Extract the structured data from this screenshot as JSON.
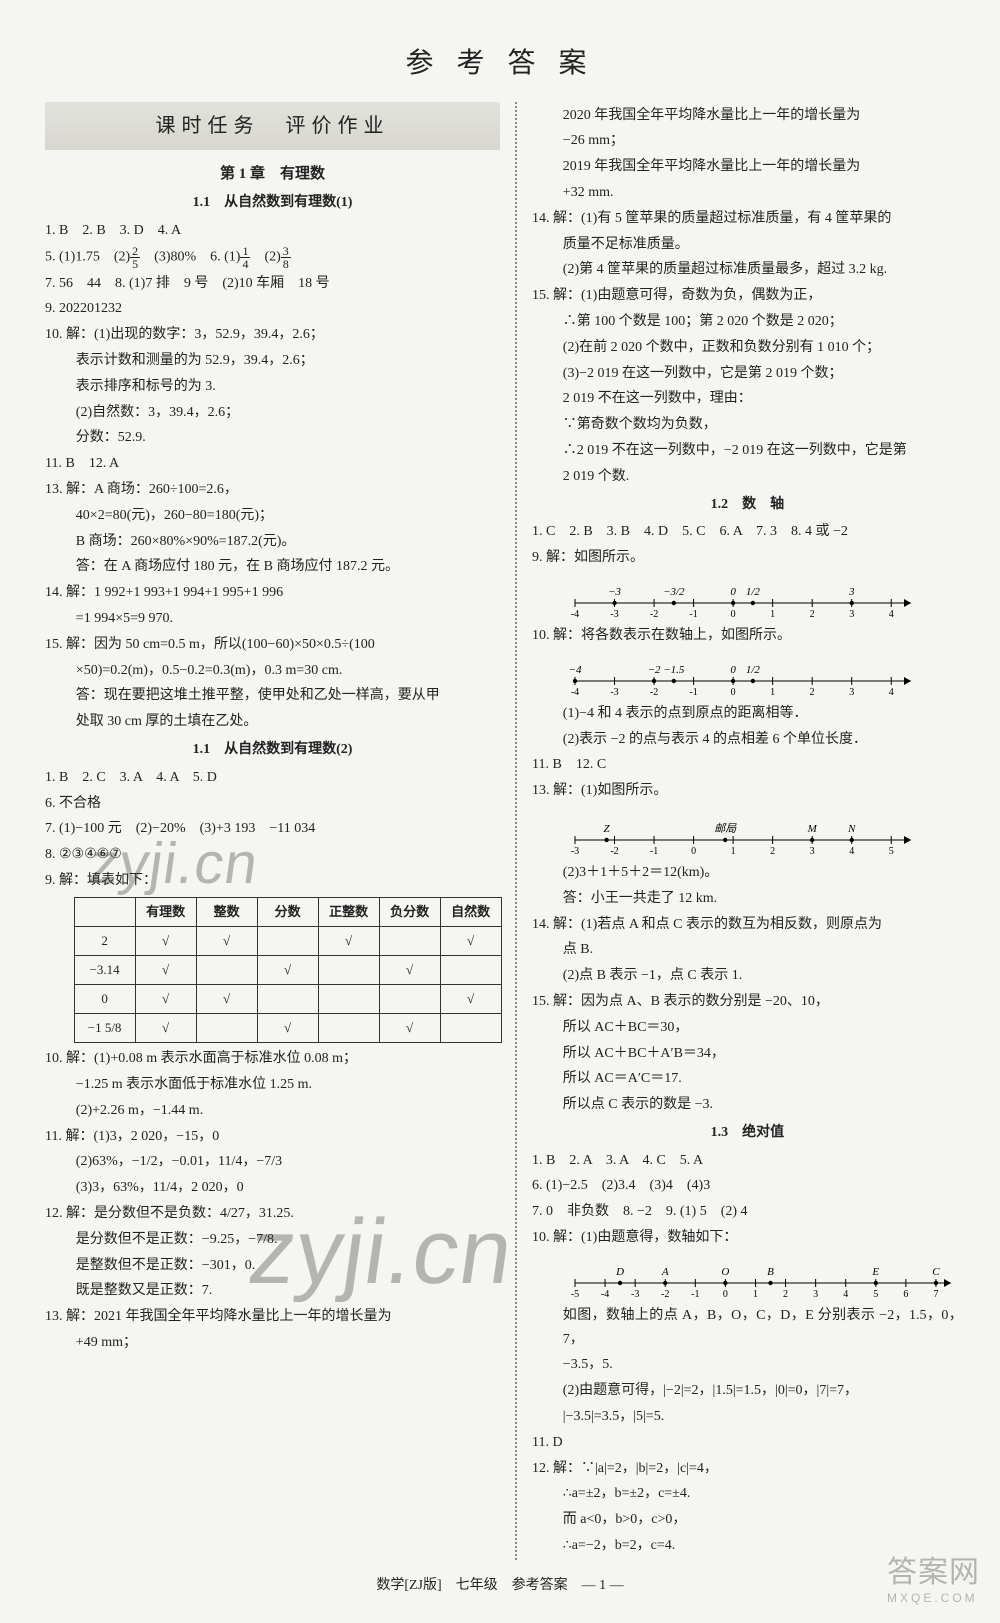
{
  "main_title": "参 考 答 案",
  "section_band": "课时任务　评价作业",
  "left": {
    "chapter": "第 1 章　有理数",
    "s1": {
      "title": "1.1　从自然数到有理数(1)",
      "l1": "1. B　2. B　3. D　4. A",
      "l2a": "5. (1)1.75　(2)",
      "l2b": "　(3)80%　6. (1)",
      "l2c": "　(2)",
      "l3": "7. 56　44　8. (1)7 排　9 号　(2)10 车厢　18 号",
      "l4": "9. 202201232",
      "l5": "10. 解：(1)出现的数字：3，52.9，39.4，2.6；",
      "l6": "表示计数和测量的为 52.9，39.4，2.6；",
      "l7": "表示排序和标号的为 3.",
      "l8": "(2)自然数：3，39.4，2.6；",
      "l9": "分数：52.9.",
      "l10": "11. B　12. A",
      "l11": "13. 解：A 商场：260÷100=2.6，",
      "l12": "40×2=80(元)，260−80=180(元)；",
      "l13": "B 商场：260×80%×90%=187.2(元)。",
      "l14": "答：在 A 商场应付 180 元，在 B 商场应付 187.2 元。",
      "l15": "14. 解：1 992+1 993+1 994+1 995+1 996",
      "l16": "=1 994×5=9 970.",
      "l17": "15. 解：因为 50 cm=0.5 m，所以(100−60)×50×0.5÷(100",
      "l18": "×50)=0.2(m)，0.5−0.2=0.3(m)，0.3 m=30 cm.",
      "l19": "答：现在要把这堆土推平整，使甲处和乙处一样高，要从甲",
      "l20": "处取 30 cm 厚的土填在乙处。"
    },
    "s2": {
      "title": "1.1　从自然数到有理数(2)",
      "l1": "1. B　2. C　3. A　4. A　5. D",
      "l2": "6. 不合格",
      "l3": "7. (1)−100 元　(2)−20%　(3)+3 193　−11 034",
      "l4": "8. ②③④⑥⑦",
      "l5": "9. 解：填表如下：",
      "table": {
        "cols": [
          "",
          "有理数",
          "整数",
          "分数",
          "正整数",
          "负分数",
          "自然数"
        ],
        "rows": [
          [
            "2",
            "√",
            "√",
            "",
            "√",
            "",
            "√"
          ],
          [
            "−3.14",
            "√",
            "",
            "√",
            "",
            "√",
            ""
          ],
          [
            "0",
            "√",
            "√",
            "",
            "",
            "",
            "√"
          ],
          [
            "−1 5/8",
            "√",
            "",
            "√",
            "",
            "√",
            ""
          ]
        ]
      },
      "l6": "10. 解：(1)+0.08 m 表示水面高于标准水位 0.08 m；",
      "l7": "−1.25 m 表示水面低于标准水位 1.25 m.",
      "l8": "(2)+2.26 m，−1.44 m.",
      "l9": "11. 解：(1)3，2 020，−15，0",
      "l10": "(2)63%，−1/2，−0.01，11/4，−7/3",
      "l11": "(3)3，63%，11/4，2 020，0",
      "l12": "12. 解：是分数但不是负数：4/27，31.25.",
      "l13": "是分数但不是正数：−9.25，−7/8.",
      "l14": "是整数但不是正数：−301，0.",
      "l15": "既是整数又是正数：7.",
      "l16": "13. 解：2021 年我国全年平均降水量比上一年的增长量为",
      "l17": "+49 mm；"
    }
  },
  "right": {
    "pre": {
      "l1": "2020 年我国全年平均降水量比上一年的增长量为",
      "l2": "−26 mm；",
      "l3": "2019 年我国全年平均降水量比上一年的增长量为",
      "l4": "+32 mm.",
      "l5": "14. 解：(1)有 5 筐苹果的质量超过标准质量，有 4 筐苹果的",
      "l6": "质量不足标准质量。",
      "l7": "(2)第 4 筐苹果的质量超过标准质量最多，超过 3.2 kg.",
      "l8": "15. 解：(1)由题意可得，奇数为负，偶数为正，",
      "l9": "∴第 100 个数是 100；第 2 020 个数是 2 020；",
      "l10": "(2)在前 2 020 个数中，正数和负数分别有 1 010 个；",
      "l11": "(3)−2 019 在这一列数中，它是第 2 019 个数；",
      "l12": "2 019 不在这一列数中，理由：",
      "l13": "∵第奇数个数均为负数，",
      "l14": "∴2 019 不在这一列数中，−2 019 在这一列数中，它是第",
      "l15": "2 019 个数."
    },
    "s3": {
      "title": "1.2　数　轴",
      "l1": "1. C　2. B　3. B　4. D　5. C　6. A　7. 3　8. 4 或 −2",
      "l2": "9. 解：如图所示。",
      "nl1": {
        "labels_top": [
          "−3",
          "−3/2",
          "0",
          "1/2",
          "3"
        ],
        "top_x": [
          -3,
          -1.5,
          0,
          0.5,
          3
        ],
        "ticks": [
          -4,
          -3,
          -2,
          -1,
          0,
          1,
          2,
          3,
          4
        ],
        "range": [
          -4,
          4.5
        ]
      },
      "l3": "10. 解：将各数表示在数轴上，如图所示。",
      "nl2": {
        "labels_top": [
          "−4",
          "−2",
          "−1.5",
          "0",
          "1/2"
        ],
        "top_x": [
          -4,
          -2,
          -1.5,
          0,
          0.5
        ],
        "ticks": [
          -4,
          -3,
          -2,
          -1,
          0,
          1,
          2,
          3,
          4
        ],
        "range": [
          -4,
          4.5
        ]
      },
      "l4": "(1)−4 和 4 表示的点到原点的距离相等．",
      "l5": "(2)表示 −2 的点与表示 4 的点相差 6 个单位长度．",
      "l6": "11. B　12. C",
      "l7": "13. 解：(1)如图所示。",
      "nl3": {
        "labels_top": [
          "Z",
          "邮局",
          "M",
          "N"
        ],
        "top_x": [
          -2.2,
          0.8,
          3,
          4
        ],
        "sub": "(2)3＋1＋5＋2＝12(km)。",
        "ticks": [
          -3,
          -2,
          -1,
          0,
          1,
          2,
          3,
          4,
          5
        ],
        "range": [
          -3,
          5.5
        ]
      },
      "l8": "答：小王一共走了 12 km.",
      "l9": "14. 解：(1)若点 A 和点 C 表示的数互为相反数，则原点为",
      "l10": "点 B.",
      "l11": "(2)点 B 表示 −1，点 C 表示 1.",
      "l12": "15. 解：因为点 A、B 表示的数分别是 −20、10，",
      "l13": "所以 AC＋BC＝30，",
      "l14": "所以 AC＋BC＋A′B＝34，",
      "l15": "所以 AC＝A′C＝17.",
      "l16": "所以点 C 表示的数是 −3."
    },
    "s4": {
      "title": "1.3　绝对值",
      "l1": "1. B　2. A　3. A　4. C　5. A",
      "l2": "6. (1)−2.5　(2)3.4　(3)4　(4)3",
      "l3": "7. 0　非负数　8. −2　9. (1) 5　(2) 4",
      "l4": "10. 解：(1)由题意得，数轴如下：",
      "nl4": {
        "labels_top": [
          "D",
          "A",
          "O",
          "B",
          "E",
          "C"
        ],
        "top_x": [
          -3.5,
          -2,
          0,
          1.5,
          5,
          7
        ],
        "ticks": [
          -5,
          -4,
          -3,
          -2,
          -1,
          0,
          1,
          2,
          3,
          4,
          5,
          6,
          7
        ],
        "range": [
          -5,
          7.5
        ]
      },
      "l5": "如图，数轴上的点 A，B，O，C，D，E 分别表示 −2，1.5，0，7，",
      "l6": "−3.5，5.",
      "l7": "(2)由题意可得，|−2|=2，|1.5|=1.5，|0|=0，|7|=7，",
      "l8": "|−3.5|=3.5，|5|=5.",
      "l9": "11. D",
      "l10": "12. 解：∵|a|=2，|b|=2，|c|=4，",
      "l11": "∴a=±2，b=±2，c=±4.",
      "l12": "而 a<0，b>0，c>0，",
      "l13": "∴a=−2，b=2，c=4."
    }
  },
  "footer": "数学[ZJ版]　七年级　参考答案　— 1 —",
  "watermarks": {
    "w1": "zyji.cn",
    "w2": "zyji.cn",
    "w3a": "答案网",
    "w3b": "MXQE.COM"
  }
}
